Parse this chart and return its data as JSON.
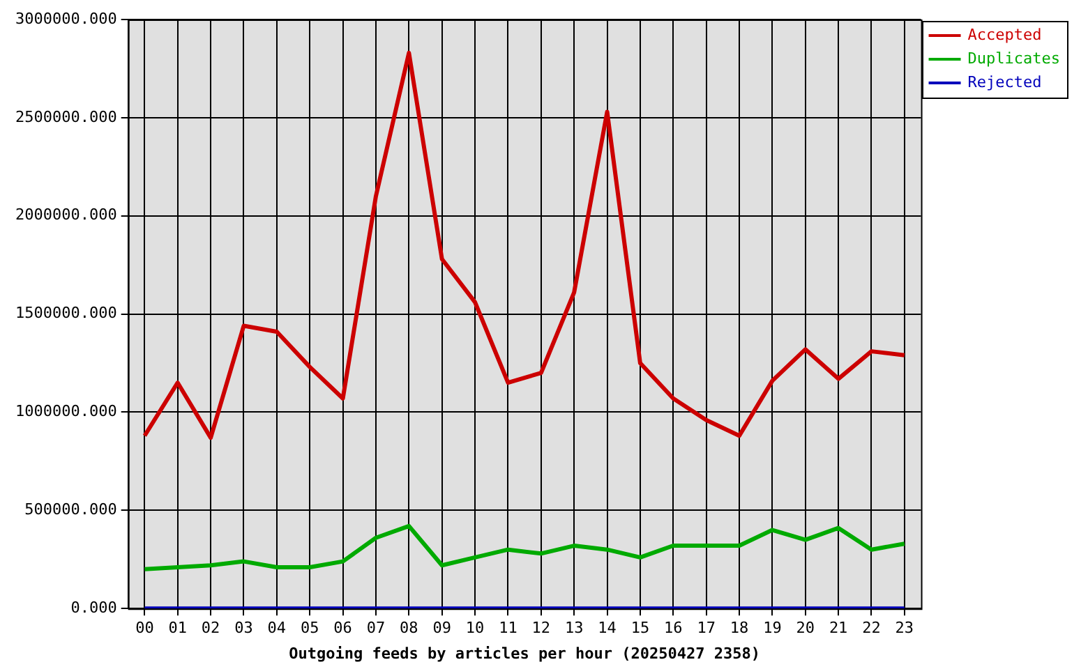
{
  "chart_data": {
    "type": "line",
    "xlabel": "Outgoing feeds by articles per hour (20250427 2358)",
    "categories": [
      "00",
      "01",
      "02",
      "03",
      "04",
      "05",
      "06",
      "07",
      "08",
      "09",
      "10",
      "11",
      "12",
      "13",
      "14",
      "15",
      "16",
      "17",
      "18",
      "19",
      "20",
      "21",
      "22",
      "23"
    ],
    "series": [
      {
        "name": "Accepted",
        "color": "#cc0000",
        "values": [
          880000,
          1150000,
          870000,
          1440000,
          1410000,
          1230000,
          1070000,
          2100000,
          2830000,
          1780000,
          1560000,
          1150000,
          1200000,
          1610000,
          2530000,
          1250000,
          1070000,
          960000,
          880000,
          1160000,
          1320000,
          1170000,
          1310000,
          1290000
        ]
      },
      {
        "name": "Duplicates",
        "color": "#00aa00",
        "values": [
          200000,
          210000,
          220000,
          240000,
          210000,
          210000,
          240000,
          360000,
          420000,
          220000,
          260000,
          300000,
          280000,
          320000,
          300000,
          260000,
          320000,
          320000,
          320000,
          400000,
          350000,
          410000,
          300000,
          330000
        ]
      },
      {
        "name": "Rejected",
        "color": "#0000bb",
        "values": [
          0,
          0,
          0,
          0,
          0,
          0,
          0,
          0,
          0,
          0,
          0,
          0,
          0,
          0,
          0,
          0,
          0,
          0,
          0,
          0,
          0,
          0,
          0,
          0
        ]
      }
    ],
    "ylim": [
      0,
      3000000
    ],
    "yticks": [
      {
        "value": 0,
        "label": "0.000"
      },
      {
        "value": 500000,
        "label": "500000.000"
      },
      {
        "value": 1000000,
        "label": "1000000.000"
      },
      {
        "value": 1500000,
        "label": "1500000.000"
      },
      {
        "value": 2000000,
        "label": "2000000.000"
      },
      {
        "value": 2500000,
        "label": "2500000.000"
      },
      {
        "value": 3000000,
        "label": "3000000.000"
      }
    ],
    "grid": true,
    "legend": "top right",
    "marker": "none",
    "line_style": "solid"
  }
}
